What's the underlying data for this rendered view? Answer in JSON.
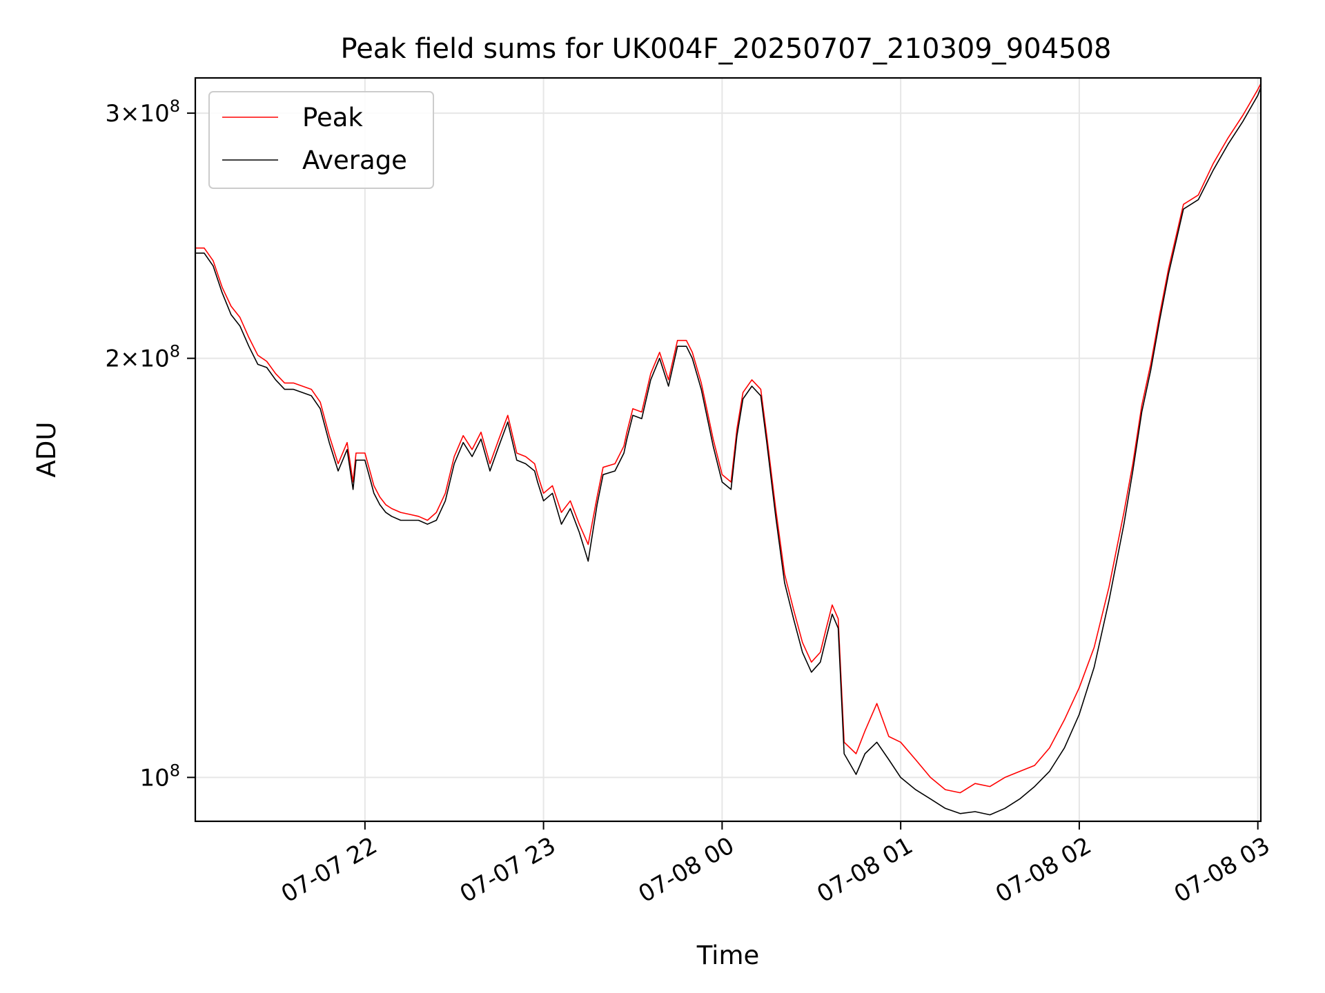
{
  "chart_data": {
    "type": "line",
    "title": "Peak field sums for UK004F_20250707_210309_904508",
    "xlabel": "Time",
    "ylabel": "ADU",
    "y_scale": "log",
    "grid": true,
    "legend_position": "upper left",
    "x_range": [
      "2025-07-07 21:03",
      "2025-07-08 03:01"
    ],
    "ylim": [
      93000000,
      318000000
    ],
    "x_ticks": [
      {
        "label": "07-07 22",
        "value": "2025-07-07 22:00"
      },
      {
        "label": "07-07 23",
        "value": "2025-07-07 23:00"
      },
      {
        "label": "07-08 00",
        "value": "2025-07-08 00:00"
      },
      {
        "label": "07-08 01",
        "value": "2025-07-08 01:00"
      },
      {
        "label": "07-08 02",
        "value": "2025-07-08 02:00"
      },
      {
        "label": "07-08 03",
        "value": "2025-07-08 03:00"
      }
    ],
    "y_ticks": [
      {
        "value": 100000000,
        "mantissa": "",
        "exponent": "8"
      },
      {
        "value": 200000000,
        "mantissa": "2",
        "exponent": "8"
      },
      {
        "value": 300000000,
        "mantissa": "3",
        "exponent": "8"
      }
    ],
    "series": [
      {
        "name": "Peak",
        "color": "#ff0000",
        "x": [
          "2025-07-07 21:03",
          "2025-07-07 21:06",
          "2025-07-07 21:09",
          "2025-07-07 21:12",
          "2025-07-07 21:15",
          "2025-07-07 21:18",
          "2025-07-07 21:21",
          "2025-07-07 21:24",
          "2025-07-07 21:27",
          "2025-07-07 21:30",
          "2025-07-07 21:33",
          "2025-07-07 21:36",
          "2025-07-07 21:39",
          "2025-07-07 21:42",
          "2025-07-07 21:45",
          "2025-07-07 21:48",
          "2025-07-07 21:51",
          "2025-07-07 21:54",
          "2025-07-07 21:56",
          "2025-07-07 21:57",
          "2025-07-07 22:00",
          "2025-07-07 22:02",
          "2025-07-07 22:03",
          "2025-07-07 22:05",
          "2025-07-07 22:07",
          "2025-07-07 22:09",
          "2025-07-07 22:12",
          "2025-07-07 22:15",
          "2025-07-07 22:18",
          "2025-07-07 22:21",
          "2025-07-07 22:24",
          "2025-07-07 22:27",
          "2025-07-07 22:30",
          "2025-07-07 22:33",
          "2025-07-07 22:36",
          "2025-07-07 22:39",
          "2025-07-07 22:42",
          "2025-07-07 22:45",
          "2025-07-07 22:48",
          "2025-07-07 22:51",
          "2025-07-07 22:54",
          "2025-07-07 22:57",
          "2025-07-07 22:58",
          "2025-07-07 23:00",
          "2025-07-07 23:03",
          "2025-07-07 23:06",
          "2025-07-07 23:09",
          "2025-07-07 23:12",
          "2025-07-07 23:15",
          "2025-07-07 23:18",
          "2025-07-07 23:20",
          "2025-07-07 23:24",
          "2025-07-07 23:27",
          "2025-07-07 23:28",
          "2025-07-07 23:30",
          "2025-07-07 23:33",
          "2025-07-07 23:36",
          "2025-07-07 23:39",
          "2025-07-07 23:42",
          "2025-07-07 23:45",
          "2025-07-07 23:48",
          "2025-07-07 23:50",
          "2025-07-07 23:53",
          "2025-07-07 23:57",
          "2025-07-08 00:00",
          "2025-07-08 00:03",
          "2025-07-08 00:05",
          "2025-07-08 00:07",
          "2025-07-08 00:10",
          "2025-07-08 00:13",
          "2025-07-08 00:15",
          "2025-07-08 00:18",
          "2025-07-08 00:21",
          "2025-07-08 00:24",
          "2025-07-08 00:27",
          "2025-07-08 00:30",
          "2025-07-08 00:33",
          "2025-07-08 00:35",
          "2025-07-08 00:37",
          "2025-07-08 00:39",
          "2025-07-08 00:41",
          "2025-07-08 00:45",
          "2025-07-08 00:48",
          "2025-07-08 00:52",
          "2025-07-08 00:56",
          "2025-07-08 01:00",
          "2025-07-08 01:05",
          "2025-07-08 01:10",
          "2025-07-08 01:15",
          "2025-07-08 01:20",
          "2025-07-08 01:25",
          "2025-07-08 01:30",
          "2025-07-08 01:35",
          "2025-07-08 01:40",
          "2025-07-08 01:45",
          "2025-07-08 01:50",
          "2025-07-08 01:55",
          "2025-07-08 02:00",
          "2025-07-08 02:05",
          "2025-07-08 02:10",
          "2025-07-08 02:15",
          "2025-07-08 02:18",
          "2025-07-08 02:21",
          "2025-07-08 02:24",
          "2025-07-08 02:27",
          "2025-07-08 02:30",
          "2025-07-08 02:35",
          "2025-07-08 02:40",
          "2025-07-08 02:45",
          "2025-07-08 02:50",
          "2025-07-08 02:55",
          "2025-07-08 03:00",
          "2025-07-08 03:01"
        ],
        "y": [
          240000000,
          240000000,
          235000000,
          225000000,
          218000000,
          214000000,
          207000000,
          201000000,
          199000000,
          195000000,
          192000000,
          192000000,
          191000000,
          190000000,
          186000000,
          176000000,
          168000000,
          174000000,
          163000000,
          171000000,
          171000000,
          165000000,
          162000000,
          159000000,
          157000000,
          156000000,
          155000000,
          154500000,
          154000000,
          153000000,
          155000000,
          160000000,
          170000000,
          176000000,
          172000000,
          177000000,
          168000000,
          175000000,
          182000000,
          171000000,
          170000000,
          168000000,
          165000000,
          160000000,
          162000000,
          155000000,
          158000000,
          152000000,
          147000000,
          159000000,
          167000000,
          168000000,
          173000000,
          177000000,
          184000000,
          183000000,
          195000000,
          202000000,
          193000000,
          206000000,
          206000000,
          202000000,
          192000000,
          175000000,
          165000000,
          163000000,
          178000000,
          189000000,
          193000000,
          190000000,
          176000000,
          156000000,
          140000000,
          132000000,
          125000000,
          121000000,
          123000000,
          128000000,
          133000000,
          130000000,
          106000000,
          104000000,
          108000000,
          113000000,
          107000000,
          106000000,
          103000000,
          100000000,
          98000000,
          97500000,
          99000000,
          98500000,
          100000000,
          101000000,
          102000000,
          105000000,
          110000000,
          116000000,
          124000000,
          137000000,
          155000000,
          168000000,
          185000000,
          198000000,
          215000000,
          232000000,
          258000000,
          262000000,
          276000000,
          288000000,
          299000000,
          312000000,
          315000000
        ]
      },
      {
        "name": "Average",
        "color": "#000000",
        "x": [
          "2025-07-07 21:03",
          "2025-07-07 21:06",
          "2025-07-07 21:09",
          "2025-07-07 21:12",
          "2025-07-07 21:15",
          "2025-07-07 21:18",
          "2025-07-07 21:21",
          "2025-07-07 21:24",
          "2025-07-07 21:27",
          "2025-07-07 21:30",
          "2025-07-07 21:33",
          "2025-07-07 21:36",
          "2025-07-07 21:39",
          "2025-07-07 21:42",
          "2025-07-07 21:45",
          "2025-07-07 21:48",
          "2025-07-07 21:51",
          "2025-07-07 21:54",
          "2025-07-07 21:56",
          "2025-07-07 21:57",
          "2025-07-07 22:00",
          "2025-07-07 22:02",
          "2025-07-07 22:03",
          "2025-07-07 22:05",
          "2025-07-07 22:07",
          "2025-07-07 22:09",
          "2025-07-07 22:12",
          "2025-07-07 22:15",
          "2025-07-07 22:18",
          "2025-07-07 22:21",
          "2025-07-07 22:24",
          "2025-07-07 22:27",
          "2025-07-07 22:30",
          "2025-07-07 22:33",
          "2025-07-07 22:36",
          "2025-07-07 22:39",
          "2025-07-07 22:42",
          "2025-07-07 22:45",
          "2025-07-07 22:48",
          "2025-07-07 22:51",
          "2025-07-07 22:54",
          "2025-07-07 22:57",
          "2025-07-07 22:58",
          "2025-07-07 23:00",
          "2025-07-07 23:03",
          "2025-07-07 23:06",
          "2025-07-07 23:09",
          "2025-07-07 23:12",
          "2025-07-07 23:15",
          "2025-07-07 23:18",
          "2025-07-07 23:20",
          "2025-07-07 23:24",
          "2025-07-07 23:27",
          "2025-07-07 23:28",
          "2025-07-07 23:30",
          "2025-07-07 23:33",
          "2025-07-07 23:36",
          "2025-07-07 23:39",
          "2025-07-07 23:42",
          "2025-07-07 23:45",
          "2025-07-07 23:48",
          "2025-07-07 23:50",
          "2025-07-07 23:53",
          "2025-07-07 23:57",
          "2025-07-08 00:00",
          "2025-07-08 00:03",
          "2025-07-08 00:05",
          "2025-07-08 00:07",
          "2025-07-08 00:10",
          "2025-07-08 00:13",
          "2025-07-08 00:15",
          "2025-07-08 00:18",
          "2025-07-08 00:21",
          "2025-07-08 00:24",
          "2025-07-08 00:27",
          "2025-07-08 00:30",
          "2025-07-08 00:33",
          "2025-07-08 00:35",
          "2025-07-08 00:37",
          "2025-07-08 00:39",
          "2025-07-08 00:41",
          "2025-07-08 00:45",
          "2025-07-08 00:48",
          "2025-07-08 00:52",
          "2025-07-08 00:56",
          "2025-07-08 01:00",
          "2025-07-08 01:05",
          "2025-07-08 01:10",
          "2025-07-08 01:15",
          "2025-07-08 01:20",
          "2025-07-08 01:25",
          "2025-07-08 01:30",
          "2025-07-08 01:35",
          "2025-07-08 01:40",
          "2025-07-08 01:45",
          "2025-07-08 01:50",
          "2025-07-08 01:55",
          "2025-07-08 02:00",
          "2025-07-08 02:05",
          "2025-07-08 02:10",
          "2025-07-08 02:15",
          "2025-07-08 02:18",
          "2025-07-08 02:21",
          "2025-07-08 02:24",
          "2025-07-08 02:27",
          "2025-07-08 02:30",
          "2025-07-08 02:35",
          "2025-07-08 02:40",
          "2025-07-08 02:45",
          "2025-07-08 02:50",
          "2025-07-08 02:55",
          "2025-07-08 03:00",
          "2025-07-08 03:01"
        ],
        "y": [
          238000000,
          238000000,
          233000000,
          223000000,
          215000000,
          211000000,
          204000000,
          198000000,
          197000000,
          193000000,
          190000000,
          190000000,
          189000000,
          188000000,
          184000000,
          174000000,
          166000000,
          172000000,
          161000000,
          169000000,
          169000000,
          163000000,
          160000000,
          157000000,
          155000000,
          154000000,
          153000000,
          153000000,
          153000000,
          152000000,
          153000000,
          158000000,
          168000000,
          174000000,
          170000000,
          175000000,
          166000000,
          173000000,
          180000000,
          169000000,
          168000000,
          166000000,
          163000000,
          158000000,
          160000000,
          152000000,
          156000000,
          150000000,
          143000000,
          157000000,
          165000000,
          166000000,
          171000000,
          175000000,
          182000000,
          181000000,
          193000000,
          200000000,
          191000000,
          204000000,
          204000000,
          200000000,
          190000000,
          173000000,
          163000000,
          161000000,
          176000000,
          187000000,
          191000000,
          188000000,
          174000000,
          154000000,
          138000000,
          130000000,
          123000000,
          119000000,
          121000000,
          126000000,
          131000000,
          128000000,
          104000000,
          100500000,
          104000000,
          106000000,
          103000000,
          100000000,
          98000000,
          96500000,
          95000000,
          94200000,
          94500000,
          94000000,
          95000000,
          96500000,
          98500000,
          101000000,
          105000000,
          111000000,
          120000000,
          134000000,
          152000000,
          166000000,
          183000000,
          196000000,
          213000000,
          230000000,
          256000000,
          260000000,
          273000000,
          285000000,
          296000000,
          309000000,
          313000000
        ]
      }
    ]
  }
}
